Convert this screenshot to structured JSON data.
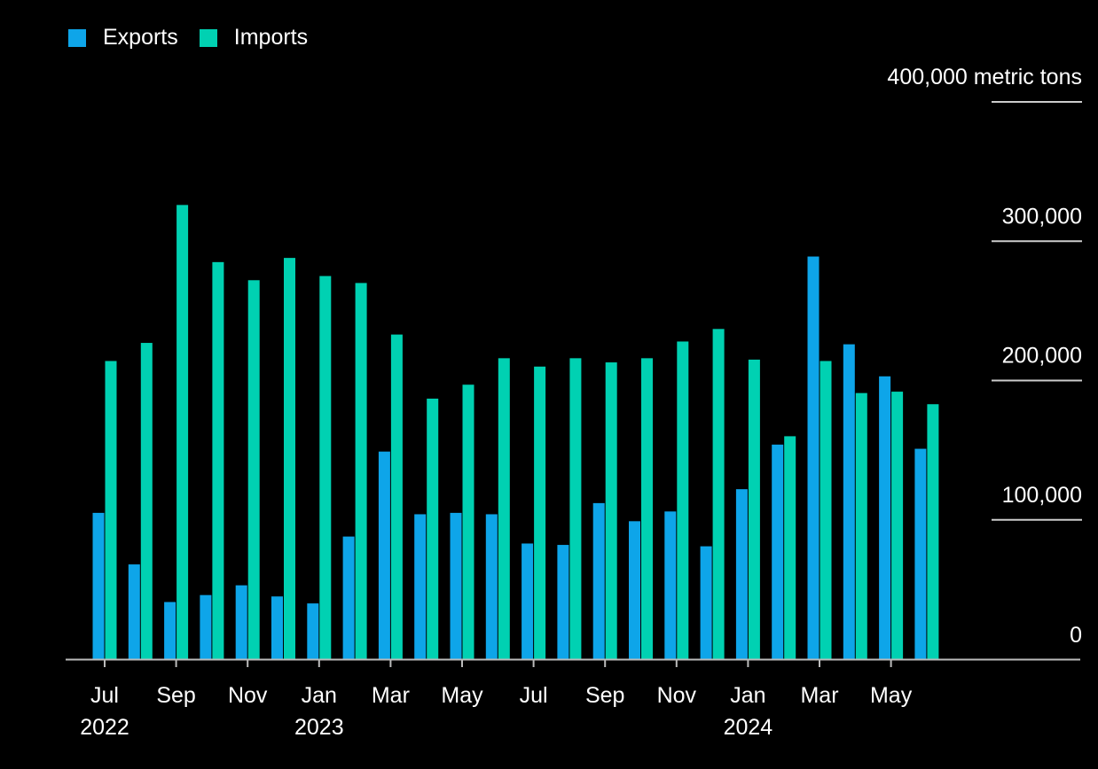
{
  "legend": {
    "exports_label": "Exports",
    "imports_label": "Imports"
  },
  "colors": {
    "exports": "#0ea5e9",
    "imports": "#00d1b2",
    "background": "#000000",
    "gridline": "#cccccc",
    "axis": "#bbbbbb"
  },
  "chart_data": {
    "type": "bar",
    "unit": "metric tons",
    "ylim": [
      0,
      400000
    ],
    "y_ticks": [
      {
        "value": 0,
        "label": "0"
      },
      {
        "value": 100000,
        "label": "100,000"
      },
      {
        "value": 200000,
        "label": "200,000"
      },
      {
        "value": 300000,
        "label": "300,000"
      },
      {
        "value": 400000,
        "label": "400,000 metric tons"
      }
    ],
    "grid": true,
    "legend_position": "top-left",
    "y_axis_position": "right",
    "categories": [
      "Jul 2022",
      "Aug 2022",
      "Sep 2022",
      "Oct 2022",
      "Nov 2022",
      "Dec 2022",
      "Jan 2023",
      "Feb 2023",
      "Mar 2023",
      "Apr 2023",
      "May 2023",
      "Jun 2023",
      "Jul 2023",
      "Aug 2023",
      "Sep 2023",
      "Oct 2023",
      "Nov 2023",
      "Dec 2023",
      "Jan 2024",
      "Feb 2024",
      "Mar 2024",
      "Apr 2024",
      "May 2024",
      "Jun 2024"
    ],
    "x_tick_labels": [
      {
        "index": 0,
        "month": "Jul",
        "year": "2022"
      },
      {
        "index": 2,
        "month": "Sep",
        "year": ""
      },
      {
        "index": 4,
        "month": "Nov",
        "year": ""
      },
      {
        "index": 6,
        "month": "Jan",
        "year": "2023"
      },
      {
        "index": 8,
        "month": "Mar",
        "year": ""
      },
      {
        "index": 10,
        "month": "May",
        "year": ""
      },
      {
        "index": 12,
        "month": "Jul",
        "year": ""
      },
      {
        "index": 14,
        "month": "Sep",
        "year": ""
      },
      {
        "index": 16,
        "month": "Nov",
        "year": ""
      },
      {
        "index": 18,
        "month": "Jan",
        "year": "2024"
      },
      {
        "index": 20,
        "month": "Mar",
        "year": ""
      },
      {
        "index": 22,
        "month": "May",
        "year": ""
      }
    ],
    "series": [
      {
        "name": "Exports",
        "values": [
          105000,
          68000,
          41000,
          46000,
          53000,
          45000,
          40000,
          88000,
          149000,
          104000,
          105000,
          104000,
          83000,
          82000,
          112000,
          99000,
          106000,
          81000,
          122000,
          154000,
          289000,
          226000,
          203000,
          151000
        ]
      },
      {
        "name": "Imports",
        "values": [
          214000,
          227000,
          326000,
          285000,
          272000,
          288000,
          275000,
          270000,
          233000,
          187000,
          197000,
          216000,
          210000,
          216000,
          213000,
          216000,
          228000,
          237000,
          215000,
          160000,
          214000,
          191000,
          192000,
          183000
        ]
      }
    ]
  }
}
